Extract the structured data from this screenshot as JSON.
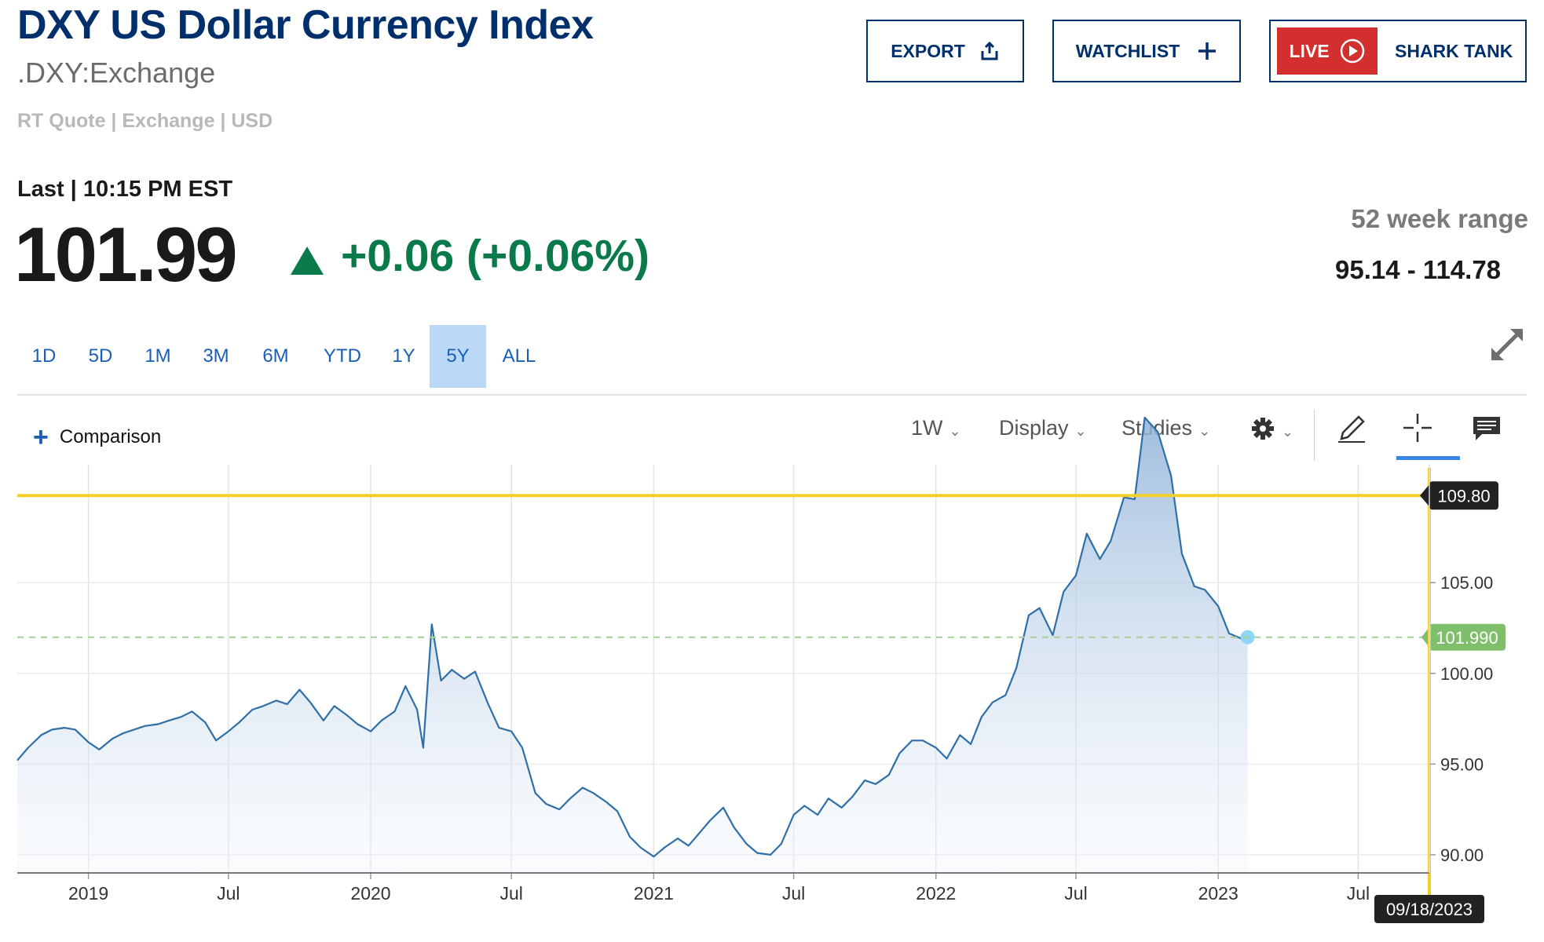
{
  "header": {
    "title": "DXY US Dollar Currency Index",
    "symbol": ".DXY:Exchange",
    "quote_meta": "RT Quote | Exchange | USD",
    "last_label": "Last | 10:15 PM EST",
    "price": "101.99",
    "change": "+0.06 (+0.06%)",
    "range_label": "52 week range",
    "range_value": "95.14 - 114.78"
  },
  "buttons": {
    "export": "EXPORT",
    "watchlist": "WATCHLIST",
    "live": "LIVE",
    "live_show": "SHARK TANK"
  },
  "timeframes": [
    "1D",
    "5D",
    "1M",
    "3M",
    "6M",
    "YTD",
    "1Y",
    "5Y",
    "ALL"
  ],
  "active_timeframe": "5Y",
  "toolbar": {
    "comparison": "Comparison",
    "interval": "1W",
    "display": "Display",
    "studies": "Studies"
  },
  "colors": {
    "brand": "#002f6c",
    "positive": "#0b7a4a",
    "line": "#2f6fa8",
    "crosshair": "#f2cf2a",
    "live": "#d32f2f"
  },
  "chart_data": {
    "type": "area",
    "xlim": [
      "2018-10-01",
      "2023-10-01"
    ],
    "ylim": [
      89,
      111.5
    ],
    "yticks": [
      90,
      95,
      100,
      105
    ],
    "ytick_labels": [
      "90.00",
      "95.00",
      "100.00",
      "105.00"
    ],
    "xticks": [
      {
        "date": "2019-01-01",
        "label": "2019"
      },
      {
        "date": "2019-07-01",
        "label": "Jul"
      },
      {
        "date": "2020-01-01",
        "label": "2020"
      },
      {
        "date": "2020-07-01",
        "label": "Jul"
      },
      {
        "date": "2021-01-01",
        "label": "2021"
      },
      {
        "date": "2021-07-01",
        "label": "Jul"
      },
      {
        "date": "2022-01-01",
        "label": "2022"
      },
      {
        "date": "2022-07-01",
        "label": "Jul"
      },
      {
        "date": "2023-01-01",
        "label": "2023"
      },
      {
        "date": "2023-07-01",
        "label": "Jul"
      }
    ],
    "grid": true,
    "last_value": 101.99,
    "last_value_label": "101.990",
    "crosshair": {
      "y": 109.8,
      "y_label": "109.80",
      "date_label": "09/18/2023"
    },
    "series": [
      {
        "points": [
          [
            "2018-10-01",
            95.2
          ],
          [
            "2018-10-15",
            95.9
          ],
          [
            "2018-11-01",
            96.6
          ],
          [
            "2018-11-15",
            96.9
          ],
          [
            "2018-12-01",
            97.0
          ],
          [
            "2018-12-15",
            96.9
          ],
          [
            "2019-01-01",
            96.2
          ],
          [
            "2019-01-15",
            95.8
          ],
          [
            "2019-02-01",
            96.4
          ],
          [
            "2019-02-15",
            96.7
          ],
          [
            "2019-03-01",
            96.9
          ],
          [
            "2019-03-15",
            97.1
          ],
          [
            "2019-04-01",
            97.2
          ],
          [
            "2019-04-15",
            97.4
          ],
          [
            "2019-05-01",
            97.6
          ],
          [
            "2019-05-15",
            97.9
          ],
          [
            "2019-06-01",
            97.3
          ],
          [
            "2019-06-15",
            96.3
          ],
          [
            "2019-07-01",
            96.8
          ],
          [
            "2019-07-15",
            97.3
          ],
          [
            "2019-08-01",
            98.0
          ],
          [
            "2019-08-15",
            98.2
          ],
          [
            "2019-09-01",
            98.5
          ],
          [
            "2019-09-15",
            98.3
          ],
          [
            "2019-10-01",
            99.1
          ],
          [
            "2019-10-15",
            98.4
          ],
          [
            "2019-11-01",
            97.4
          ],
          [
            "2019-11-15",
            98.2
          ],
          [
            "2019-12-01",
            97.7
          ],
          [
            "2019-12-15",
            97.2
          ],
          [
            "2020-01-01",
            96.8
          ],
          [
            "2020-01-15",
            97.4
          ],
          [
            "2020-02-01",
            97.9
          ],
          [
            "2020-02-15",
            99.3
          ],
          [
            "2020-03-01",
            98.0
          ],
          [
            "2020-03-09",
            95.9
          ],
          [
            "2020-03-20",
            102.7
          ],
          [
            "2020-04-01",
            99.6
          ],
          [
            "2020-04-15",
            100.2
          ],
          [
            "2020-05-01",
            99.7
          ],
          [
            "2020-05-15",
            100.1
          ],
          [
            "2020-06-01",
            98.3
          ],
          [
            "2020-06-15",
            97.0
          ],
          [
            "2020-07-01",
            96.8
          ],
          [
            "2020-07-15",
            95.9
          ],
          [
            "2020-08-01",
            93.4
          ],
          [
            "2020-08-15",
            92.8
          ],
          [
            "2020-09-01",
            92.5
          ],
          [
            "2020-09-15",
            93.1
          ],
          [
            "2020-10-01",
            93.7
          ],
          [
            "2020-10-15",
            93.4
          ],
          [
            "2020-11-01",
            92.9
          ],
          [
            "2020-11-15",
            92.4
          ],
          [
            "2020-12-01",
            91.0
          ],
          [
            "2020-12-15",
            90.4
          ],
          [
            "2021-01-01",
            89.9
          ],
          [
            "2021-01-15",
            90.4
          ],
          [
            "2021-02-01",
            90.9
          ],
          [
            "2021-02-15",
            90.5
          ],
          [
            "2021-03-01",
            91.2
          ],
          [
            "2021-03-15",
            91.9
          ],
          [
            "2021-04-01",
            92.6
          ],
          [
            "2021-04-15",
            91.5
          ],
          [
            "2021-05-01",
            90.6
          ],
          [
            "2021-05-15",
            90.1
          ],
          [
            "2021-06-01",
            90.0
          ],
          [
            "2021-06-15",
            90.6
          ],
          [
            "2021-07-01",
            92.2
          ],
          [
            "2021-07-15",
            92.7
          ],
          [
            "2021-08-01",
            92.2
          ],
          [
            "2021-08-15",
            93.1
          ],
          [
            "2021-09-01",
            92.6
          ],
          [
            "2021-09-15",
            93.2
          ],
          [
            "2021-10-01",
            94.1
          ],
          [
            "2021-10-15",
            93.9
          ],
          [
            "2021-11-01",
            94.4
          ],
          [
            "2021-11-15",
            95.6
          ],
          [
            "2021-12-01",
            96.3
          ],
          [
            "2021-12-15",
            96.3
          ],
          [
            "2022-01-01",
            95.9
          ],
          [
            "2022-01-15",
            95.3
          ],
          [
            "2022-02-01",
            96.6
          ],
          [
            "2022-02-15",
            96.1
          ],
          [
            "2022-03-01",
            97.6
          ],
          [
            "2022-03-15",
            98.4
          ],
          [
            "2022-04-01",
            98.8
          ],
          [
            "2022-04-15",
            100.3
          ],
          [
            "2022-05-01",
            103.2
          ],
          [
            "2022-05-15",
            103.6
          ],
          [
            "2022-06-01",
            102.1
          ],
          [
            "2022-06-15",
            104.5
          ],
          [
            "2022-07-01",
            105.4
          ],
          [
            "2022-07-15",
            107.7
          ],
          [
            "2022-08-01",
            106.3
          ],
          [
            "2022-08-15",
            107.3
          ],
          [
            "2022-09-01",
            109.7
          ],
          [
            "2022-09-15",
            109.6
          ],
          [
            "2022-09-28",
            114.1
          ],
          [
            "2022-10-15",
            113.3
          ],
          [
            "2022-11-01",
            110.9
          ],
          [
            "2022-11-15",
            106.6
          ],
          [
            "2022-12-01",
            104.8
          ],
          [
            "2022-12-15",
            104.6
          ],
          [
            "2023-01-01",
            103.7
          ],
          [
            "2023-01-15",
            102.2
          ],
          [
            "2023-02-01",
            101.9
          ],
          [
            "2023-02-08",
            101.99
          ]
        ]
      }
    ]
  }
}
